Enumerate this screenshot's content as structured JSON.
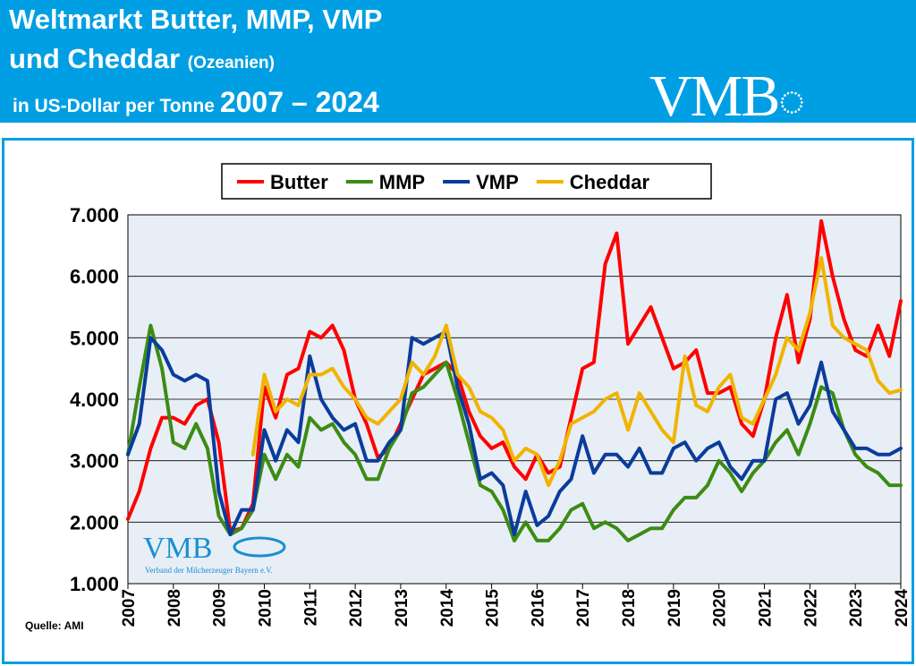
{
  "header": {
    "title_line1": "Weltmarkt Butter, MMP, VMP",
    "title_line2": "und Cheddar",
    "region": "(Ozeanien)",
    "unit": "in US-Dollar per Tonne",
    "range": "2007 – 2024",
    "logo": "VMB"
  },
  "watermark": {
    "logo": "VMB",
    "subtitle": "Verband der Milcherzeuger Bayern e.V."
  },
  "source": "Quelle: AMI",
  "chart_data": {
    "type": "line",
    "title": "",
    "xlabel": "",
    "ylabel": "",
    "xlim": [
      2007,
      2024
    ],
    "ylim": [
      1000,
      7000
    ],
    "grid": "horizontal",
    "legend": "top-center",
    "background": "#e8eef6",
    "yticks": [
      "1.000",
      "2.000",
      "3.000",
      "4.000",
      "5.000",
      "6.000",
      "7.000"
    ],
    "xticks": [
      "2007",
      "2008",
      "2009",
      "2010",
      "2011",
      "2012",
      "2013",
      "2014",
      "2015",
      "2016",
      "2017",
      "2018",
      "2019",
      "2020",
      "2021",
      "2022",
      "2023",
      "2024"
    ],
    "x_start": 2007,
    "x_step": 0.25,
    "series": [
      {
        "name": "Butter",
        "color": "#ff0000",
        "values": [
          2050,
          2500,
          3200,
          3700,
          3700,
          3600,
          3900,
          4000,
          3300,
          1850,
          1900,
          2300,
          4200,
          3700,
          4400,
          4500,
          5100,
          5000,
          5200,
          4800,
          4000,
          3600,
          3050,
          3200,
          3600,
          4000,
          4400,
          4500,
          4600,
          4400,
          3800,
          3400,
          3200,
          3300,
          2900,
          2700,
          3100,
          2800,
          2900,
          3700,
          4500,
          4600,
          6200,
          6700,
          4900,
          5200,
          5500,
          5000,
          4500,
          4600,
          4800,
          4100,
          4100,
          4200,
          3600,
          3400,
          4000,
          5000,
          5700,
          4600,
          5300,
          6900,
          6000,
          5300,
          4800,
          4700,
          5200,
          4700,
          5600
        ]
      },
      {
        "name": "MMP",
        "color": "#3c8c14",
        "values": [
          3100,
          4200,
          5200,
          4500,
          3300,
          3200,
          3600,
          3200,
          2100,
          1800,
          1900,
          2200,
          3100,
          2700,
          3100,
          2900,
          3700,
          3500,
          3600,
          3300,
          3100,
          2700,
          2700,
          3200,
          3500,
          4100,
          4200,
          4400,
          4600,
          4000,
          3300,
          2600,
          2500,
          2200,
          1700,
          2000,
          1700,
          1700,
          1900,
          2200,
          2300,
          1900,
          2000,
          1900,
          1700,
          1800,
          1900,
          1900,
          2200,
          2400,
          2400,
          2600,
          3000,
          2800,
          2500,
          2800,
          3000,
          3300,
          3500,
          3100,
          3600,
          4200,
          4100,
          3500,
          3100,
          2900,
          2800,
          2600,
          2600
        ]
      },
      {
        "name": "VMP",
        "color": "#0a3c9c",
        "values": [
          3100,
          3600,
          5000,
          4800,
          4400,
          4300,
          4400,
          4300,
          2500,
          1800,
          2200,
          2200,
          3500,
          3000,
          3500,
          3300,
          4700,
          4000,
          3700,
          3500,
          3600,
          3000,
          3000,
          3300,
          3500,
          5000,
          4900,
          5000,
          5100,
          4200,
          3600,
          2700,
          2800,
          2600,
          1800,
          2500,
          1950,
          2100,
          2500,
          2700,
          3400,
          2800,
          3100,
          3100,
          2900,
          3200,
          2800,
          2800,
          3200,
          3300,
          3000,
          3200,
          3300,
          2900,
          2700,
          3000,
          3000,
          4000,
          4100,
          3600,
          3900,
          4600,
          3800,
          3500,
          3200,
          3200,
          3100,
          3100,
          3200
        ]
      },
      {
        "name": "Cheddar",
        "color": "#f0b400",
        "values": [
          null,
          null,
          null,
          null,
          null,
          null,
          null,
          null,
          null,
          null,
          null,
          3100,
          4400,
          3800,
          4000,
          3900,
          4400,
          4400,
          4500,
          4200,
          4000,
          3700,
          3600,
          3800,
          4000,
          4600,
          4400,
          4700,
          5200,
          4400,
          4200,
          3800,
          3700,
          3500,
          3000,
          3200,
          3100,
          2600,
          3000,
          3600,
          3700,
          3800,
          4000,
          4100,
          3500,
          4100,
          3800,
          3500,
          3300,
          4700,
          3900,
          3800,
          4200,
          4400,
          3700,
          3600,
          4000,
          4400,
          5000,
          4800,
          5400,
          6300,
          5200,
          5000,
          4900,
          4800,
          4300,
          4100,
          4150
        ]
      }
    ]
  }
}
